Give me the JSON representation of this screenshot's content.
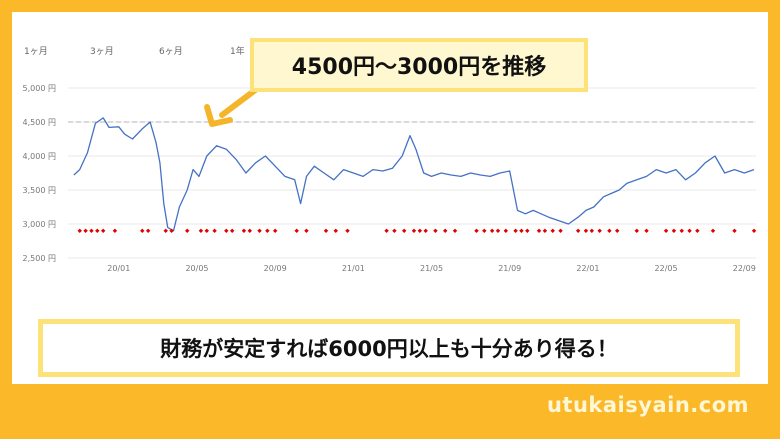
{
  "tabs": [
    "1ヶ月",
    "3ヶ月",
    "6ヶ月",
    "1年"
  ],
  "callout": "4500円〜3000円を推移",
  "bottom_text": "財務が安定すれば6000円以上も十分あり得る！",
  "site": "utukaisyain.com",
  "colors": {
    "background": "#fbb829",
    "line": "#4472c4",
    "marker": "#e00000",
    "box_border": "#fde27a",
    "arrow": "#f5b52a"
  },
  "chart_data": {
    "type": "line",
    "ylim": [
      2500,
      5000
    ],
    "y_ticks": [
      2500,
      3000,
      3500,
      4000,
      4500,
      5000
    ],
    "y_tick_labels": [
      "2,500 円",
      "3,000 円",
      "3,500 円",
      "4,000 円",
      "4,500 円",
      "5,000 円"
    ],
    "x_ticks": [
      "20/01",
      "20/05",
      "20/09",
      "21/01",
      "21/05",
      "21/09",
      "22/01",
      "22/05",
      "22/09"
    ],
    "x_tick_pos": [
      2,
      6,
      10,
      14,
      18,
      22,
      26,
      30,
      34
    ],
    "xlim": [
      -0.6,
      34.6
    ],
    "reference_line": 4500,
    "series": [
      {
        "x": [
          -0.3,
          0,
          0.4,
          0.8,
          1.2,
          1.5,
          2,
          2.3,
          2.7,
          3.2,
          3.6,
          3.9,
          4.1,
          4.3,
          4.5,
          4.8,
          5.1,
          5.5,
          5.8,
          6.1,
          6.5,
          7,
          7.5,
          8,
          8.5,
          9,
          9.5,
          10,
          10.5,
          11,
          11.3,
          11.6,
          12,
          12.5,
          13,
          13.5,
          14,
          14.5,
          15,
          15.5,
          16,
          16.5,
          16.9,
          17.2,
          17.6,
          18,
          18.5,
          19,
          19.5,
          20,
          20.5,
          21,
          21.5,
          22,
          22.4,
          22.8,
          23.2,
          23.6,
          24,
          24.5,
          25,
          25.5,
          25.9,
          26.3,
          26.8,
          27.2,
          27.6,
          28,
          28.5,
          29,
          29.5,
          30,
          30.5,
          31,
          31.5,
          32,
          32.5,
          33,
          33.5,
          34,
          34.5
        ],
        "values": [
          3720,
          3800,
          4050,
          4480,
          4560,
          4420,
          4430,
          4320,
          4250,
          4400,
          4500,
          4200,
          3900,
          3300,
          2950,
          2900,
          3250,
          3500,
          3800,
          3700,
          4000,
          4150,
          4100,
          3950,
          3750,
          3900,
          4000,
          3850,
          3700,
          3650,
          3300,
          3700,
          3850,
          3750,
          3650,
          3800,
          3750,
          3700,
          3800,
          3780,
          3820,
          4000,
          4300,
          4100,
          3750,
          3700,
          3750,
          3720,
          3700,
          3750,
          3720,
          3700,
          3750,
          3780,
          3200,
          3150,
          3200,
          3150,
          3100,
          3050,
          3000,
          3100,
          3200,
          3250,
          3400,
          3450,
          3500,
          3600,
          3650,
          3700,
          3800,
          3750,
          3800,
          3650,
          3750,
          3900,
          4000,
          3750,
          3800,
          3750,
          3800
        ]
      }
    ],
    "markers": {
      "y": 2900,
      "x": [
        0,
        0.3,
        0.6,
        0.9,
        1.2,
        1.8,
        3.2,
        3.5,
        4.4,
        4.7,
        5.5,
        6.2,
        6.5,
        6.9,
        7.5,
        7.8,
        8.4,
        8.7,
        9.2,
        9.6,
        10,
        11.1,
        11.6,
        12.6,
        13.1,
        13.7,
        15.7,
        16.1,
        16.6,
        17.1,
        17.4,
        17.7,
        18.2,
        18.7,
        19.2,
        20.3,
        20.7,
        21.1,
        21.4,
        21.8,
        22.3,
        22.6,
        22.9,
        23.5,
        23.8,
        24.2,
        24.6,
        25.5,
        25.9,
        26.2,
        26.6,
        27.1,
        27.5,
        28.5,
        29,
        30,
        30.4,
        30.8,
        31.2,
        31.6,
        32.4,
        33.5,
        34.5
      ]
    }
  }
}
